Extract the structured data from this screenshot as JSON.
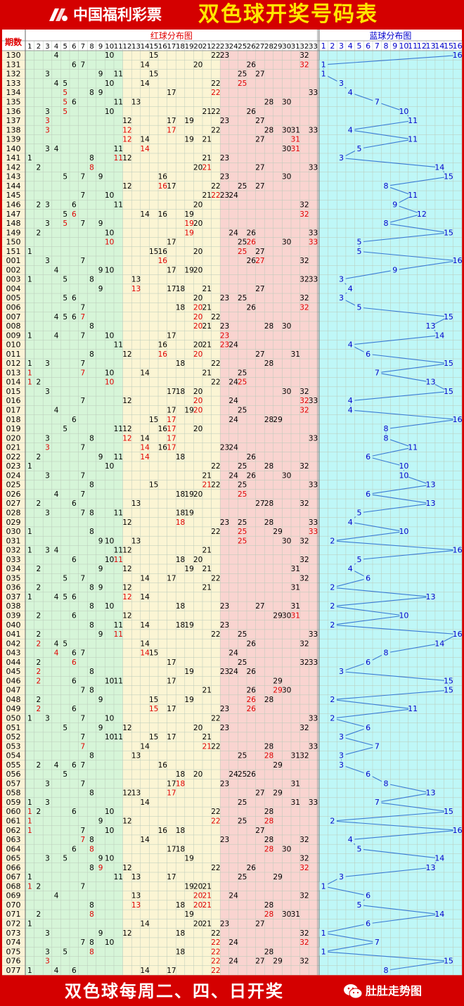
{
  "header": {
    "logo_text": "中国福利彩票",
    "title": "双色球开奖号码表",
    "logo_icon": "cwl-logo-icon"
  },
  "footer": {
    "schedule_text": "双色球每周二、四、日开奖",
    "brand_text": "肚肚走势图",
    "wechat_icon": "wechat-icon"
  },
  "colors": {
    "frame": "#d40000",
    "title_yellow": "#ffe600",
    "red_number": "#e00000",
    "blue_number": "#0000cc",
    "zone1": "#d6f5d8",
    "zone2": "#fbf5d4",
    "zone3": "#f9d4d0",
    "blue_zone": "#bff7f7",
    "period_col": "#fbf3d6"
  },
  "chart_data": {
    "type": "table",
    "row_header": "期数",
    "red_title": "红球分布图",
    "blue_title": "蓝球分布图",
    "red_cols": [
      "1",
      "2",
      "3",
      "4",
      "5",
      "6",
      "7",
      "8",
      "9",
      "10",
      "11",
      "12",
      "13",
      "14",
      "15",
      "16",
      "17",
      "18",
      "19",
      "20",
      "21",
      "22",
      "23",
      "24",
      "25",
      "26",
      "27",
      "28",
      "29",
      "30",
      "31",
      "32",
      "33"
    ],
    "blue_cols": [
      "1",
      "2",
      "3",
      "4",
      "5",
      "6",
      "7",
      "8",
      "9",
      "10",
      "11",
      "12",
      "13",
      "14",
      "15",
      "16"
    ],
    "draws": [
      {
        "p": "130",
        "r": [
          4,
          10,
          15,
          22,
          23,
          32
        ],
        "b": 16
      },
      {
        "p": "131",
        "r": [
          6,
          7,
          14,
          20,
          26,
          32
        ],
        "b": 1
      },
      {
        "p": "132",
        "r": [
          3,
          9,
          11,
          15,
          25,
          27
        ],
        "b": 1
      },
      {
        "p": "133",
        "r": [
          4,
          5,
          10,
          14,
          22,
          25
        ],
        "b": 3
      },
      {
        "p": "134",
        "r": [
          5,
          8,
          9,
          17,
          22,
          33
        ],
        "b": 4
      },
      {
        "p": "135",
        "r": [
          5,
          6,
          11,
          13,
          28,
          30
        ],
        "b": 7
      },
      {
        "p": "136",
        "r": [
          3,
          5,
          10,
          21,
          22,
          26
        ],
        "b": 10
      },
      {
        "p": "137",
        "r": [
          3,
          12,
          17,
          19,
          23,
          27
        ],
        "b": 11
      },
      {
        "p": "138",
        "r": [
          3,
          12,
          17,
          22,
          28,
          30,
          31,
          33
        ],
        "b": 4
      },
      {
        "p": "139",
        "r": [
          12,
          14,
          19,
          21,
          27,
          31
        ],
        "b": 11
      },
      {
        "p": "140",
        "r": [
          3,
          4,
          11,
          14,
          30,
          31
        ],
        "b": 5
      },
      {
        "p": "141",
        "r": [
          1,
          8,
          11,
          12,
          21,
          23
        ],
        "b": 3
      },
      {
        "p": "142",
        "r": [
          2,
          8,
          20,
          21,
          27,
          33
        ],
        "b": 14
      },
      {
        "p": "143",
        "r": [
          5,
          7,
          9,
          16,
          23,
          30
        ],
        "b": 15
      },
      {
        "p": "144",
        "r": [
          12,
          16,
          17,
          22,
          25,
          27
        ],
        "b": 8
      },
      {
        "p": "145",
        "r": [
          7,
          10,
          21,
          22,
          23,
          24
        ],
        "b": 11
      },
      {
        "p": "146",
        "r": [
          2,
          3,
          6,
          11,
          20,
          32
        ],
        "b": 9
      },
      {
        "p": "147",
        "r": [
          5,
          6,
          14,
          16,
          19,
          32
        ],
        "b": 12
      },
      {
        "p": "148",
        "r": [
          3,
          5,
          7,
          9,
          19,
          20
        ],
        "b": 8
      },
      {
        "p": "149",
        "r": [
          2,
          10,
          19,
          24,
          26,
          33
        ],
        "b": 15
      },
      {
        "p": "150",
        "r": [
          10,
          17,
          25,
          26,
          30,
          33
        ],
        "b": 5
      },
      {
        "p": "151",
        "r": [
          1,
          15,
          16,
          20,
          25,
          27
        ],
        "b": 5
      },
      {
        "p": "001",
        "r": [
          3,
          7,
          16,
          26,
          27,
          32
        ],
        "b": 16
      },
      {
        "p": "002",
        "r": [
          4,
          9,
          10,
          17,
          19,
          20
        ],
        "b": 9
      },
      {
        "p": "003",
        "r": [
          1,
          5,
          8,
          13,
          32,
          33
        ],
        "b": 3
      },
      {
        "p": "004",
        "r": [
          9,
          13,
          17,
          18,
          21,
          27
        ],
        "b": 4
      },
      {
        "p": "005",
        "r": [
          5,
          6,
          20,
          23,
          25,
          32
        ],
        "b": 3
      },
      {
        "p": "006",
        "r": [
          7,
          18,
          20,
          21,
          26,
          32
        ],
        "b": 5
      },
      {
        "p": "007",
        "r": [
          4,
          5,
          6,
          7,
          20,
          22
        ],
        "b": 15
      },
      {
        "p": "008",
        "r": [
          8,
          20,
          21,
          23,
          28,
          30
        ],
        "b": 13
      },
      {
        "p": "009",
        "r": [
          1,
          4,
          7,
          10,
          17,
          23
        ],
        "b": 14
      },
      {
        "p": "010",
        "r": [
          11,
          16,
          20,
          21,
          23,
          24
        ],
        "b": 4
      },
      {
        "p": "011",
        "r": [
          8,
          12,
          16,
          20,
          27,
          31
        ],
        "b": 6
      },
      {
        "p": "012",
        "r": [
          1,
          3,
          7,
          18,
          22,
          28
        ],
        "b": 15
      },
      {
        "p": "013",
        "r": [
          1,
          7,
          10,
          14,
          21,
          25
        ],
        "b": 7
      },
      {
        "p": "014",
        "r": [
          1,
          2,
          10,
          22,
          24,
          25
        ],
        "b": 13
      },
      {
        "p": "015",
        "r": [
          3,
          17,
          18,
          20,
          30,
          32
        ],
        "b": 15
      },
      {
        "p": "016",
        "r": [
          7,
          12,
          20,
          24,
          32,
          33
        ],
        "b": 4
      },
      {
        "p": "017",
        "r": [
          4,
          17,
          19,
          20,
          25,
          32
        ],
        "b": 4
      },
      {
        "p": "018",
        "r": [
          6,
          15,
          17,
          24,
          28,
          29
        ],
        "b": 16
      },
      {
        "p": "019",
        "r": [
          5,
          11,
          12,
          16,
          17,
          20
        ],
        "b": 8
      },
      {
        "p": "020",
        "r": [
          3,
          8,
          12,
          14,
          17,
          33
        ],
        "b": 8
      },
      {
        "p": "021",
        "r": [
          3,
          7,
          14,
          16,
          17,
          23,
          24
        ],
        "b": 11
      },
      {
        "p": "022",
        "r": [
          2,
          9,
          11,
          14,
          18,
          26
        ],
        "b": 6
      },
      {
        "p": "023",
        "r": [
          1,
          10,
          22,
          25,
          28,
          32
        ],
        "b": 10
      },
      {
        "p": "024",
        "r": [
          3,
          7,
          21,
          24,
          26,
          30
        ],
        "b": 10
      },
      {
        "p": "025",
        "r": [
          8,
          15,
          21,
          22,
          25,
          33
        ],
        "b": 13
      },
      {
        "p": "026",
        "r": [
          4,
          7,
          18,
          19,
          20,
          25
        ],
        "b": 6
      },
      {
        "p": "027",
        "r": [
          2,
          6,
          13,
          27,
          28,
          32
        ],
        "b": 13
      },
      {
        "p": "028",
        "r": [
          3,
          7,
          8,
          11,
          18,
          19
        ],
        "b": 5
      },
      {
        "p": "029",
        "r": [
          12,
          18,
          23,
          25,
          28,
          33
        ],
        "b": 4
      },
      {
        "p": "030",
        "r": [
          1,
          8,
          22,
          25,
          29,
          33
        ],
        "b": 10
      },
      {
        "p": "031",
        "r": [
          9,
          10,
          13,
          25,
          30,
          32
        ],
        "b": 2
      },
      {
        "p": "032",
        "r": [
          1,
          3,
          4,
          11,
          12,
          21
        ],
        "b": 16
      },
      {
        "p": "033",
        "r": [
          6,
          10,
          11,
          18,
          20,
          32
        ],
        "b": 5
      },
      {
        "p": "034",
        "r": [
          2,
          9,
          12,
          19,
          21,
          31
        ],
        "b": 4
      },
      {
        "p": "035",
        "r": [
          5,
          7,
          14,
          17,
          22,
          32
        ],
        "b": 6
      },
      {
        "p": "036",
        "r": [
          2,
          8,
          9,
          12,
          21,
          31
        ],
        "b": 2
      },
      {
        "p": "037",
        "r": [
          1,
          4,
          5,
          6,
          12,
          14
        ],
        "b": 13
      },
      {
        "p": "038",
        "r": [
          8,
          10,
          18,
          23,
          27,
          31
        ],
        "b": 2
      },
      {
        "p": "039",
        "r": [
          2,
          6,
          12,
          29,
          30,
          31
        ],
        "b": 10
      },
      {
        "p": "040",
        "r": [
          8,
          11,
          14,
          18,
          19,
          23
        ],
        "b": 2
      },
      {
        "p": "041",
        "r": [
          2,
          9,
          11,
          22,
          25,
          33
        ],
        "b": 16
      },
      {
        "p": "042",
        "r": [
          2,
          4,
          5,
          14,
          26,
          32
        ],
        "b": 14
      },
      {
        "p": "043",
        "r": [
          4,
          6,
          7,
          14,
          15,
          24
        ],
        "b": 8
      },
      {
        "p": "044",
        "r": [
          2,
          6,
          17,
          25,
          32,
          33
        ],
        "b": 6
      },
      {
        "p": "045",
        "r": [
          2,
          8,
          19,
          23,
          24,
          26
        ],
        "b": 3
      },
      {
        "p": "046",
        "r": [
          2,
          6,
          10,
          11,
          17,
          29
        ],
        "b": 15
      },
      {
        "p": "047",
        "r": [
          7,
          8,
          21,
          26,
          29,
          30
        ],
        "b": 15
      },
      {
        "p": "048",
        "r": [
          2,
          9,
          15,
          19,
          26,
          28
        ],
        "b": 2
      },
      {
        "p": "049",
        "r": [
          2,
          6,
          15,
          17,
          23,
          26
        ],
        "b": 11
      },
      {
        "p": "050",
        "r": [
          1,
          3,
          7,
          10,
          22,
          33
        ],
        "b": 2
      },
      {
        "p": "051",
        "r": [
          5,
          9,
          12,
          20,
          23,
          32
        ],
        "b": 6
      },
      {
        "p": "052",
        "r": [
          7,
          10,
          11,
          15,
          17,
          21
        ],
        "b": 3
      },
      {
        "p": "053",
        "r": [
          7,
          14,
          21,
          22,
          28,
          33
        ],
        "b": 7
      },
      {
        "p": "054",
        "r": [
          8,
          13,
          25,
          28,
          31,
          32
        ],
        "b": 3
      },
      {
        "p": "055",
        "r": [
          2,
          4,
          6,
          7,
          16,
          29
        ],
        "b": 3
      },
      {
        "p": "056",
        "r": [
          5,
          18,
          20,
          24,
          25,
          26
        ],
        "b": 6
      },
      {
        "p": "057",
        "r": [
          3,
          7,
          17,
          18,
          23,
          31
        ],
        "b": 8
      },
      {
        "p": "058",
        "r": [
          8,
          12,
          13,
          17,
          27,
          29
        ],
        "b": 13
      },
      {
        "p": "059",
        "r": [
          1,
          3,
          14,
          25,
          31,
          33
        ],
        "b": 7
      },
      {
        "p": "060",
        "r": [
          1,
          2,
          6,
          10,
          22,
          28
        ],
        "b": 15
      },
      {
        "p": "061",
        "r": [
          1,
          9,
          12,
          22,
          25,
          28
        ],
        "b": 2
      },
      {
        "p": "062",
        "r": [
          1,
          7,
          10,
          16,
          18,
          27
        ],
        "b": 16
      },
      {
        "p": "063",
        "r": [
          7,
          8,
          14,
          23,
          28,
          32
        ],
        "b": 4
      },
      {
        "p": "064",
        "r": [
          6,
          8,
          17,
          18,
          28,
          30
        ],
        "b": 5
      },
      {
        "p": "065",
        "r": [
          3,
          5,
          9,
          10,
          19,
          32
        ],
        "b": 14
      },
      {
        "p": "066",
        "r": [
          8,
          9,
          12,
          22,
          26,
          32
        ],
        "b": 13
      },
      {
        "p": "067",
        "r": [
          1,
          11,
          13,
          17,
          25,
          29
        ],
        "b": 3
      },
      {
        "p": "068",
        "r": [
          1,
          2,
          7,
          19,
          20,
          21
        ],
        "b": 1
      },
      {
        "p": "069",
        "r": [
          4,
          13,
          20,
          21,
          24,
          32
        ],
        "b": 6
      },
      {
        "p": "070",
        "r": [
          8,
          13,
          18,
          20,
          21,
          28
        ],
        "b": 5
      },
      {
        "p": "071",
        "r": [
          2,
          8,
          19,
          28,
          30,
          31
        ],
        "b": 14
      },
      {
        "p": "072",
        "r": [
          1,
          14,
          20,
          21,
          23,
          27
        ],
        "b": 6
      },
      {
        "p": "073",
        "r": [
          3,
          9,
          12,
          18,
          22,
          32
        ],
        "b": 1
      },
      {
        "p": "074",
        "r": [
          7,
          8,
          10,
          22,
          24,
          32
        ],
        "b": 7
      },
      {
        "p": "075",
        "r": [
          3,
          5,
          8,
          18,
          22,
          28
        ],
        "b": 1
      },
      {
        "p": "076",
        "r": [
          3,
          22,
          24,
          27,
          29,
          32
        ],
        "b": 15
      },
      {
        "p": "077",
        "r": [
          1,
          4,
          6,
          14,
          17,
          22
        ],
        "b": 8
      }
    ]
  }
}
